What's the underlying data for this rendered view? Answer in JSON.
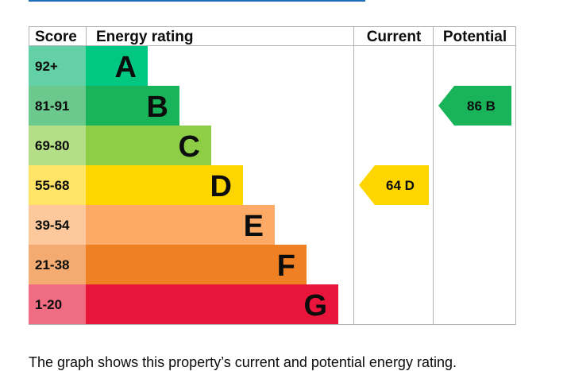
{
  "chart_data": {
    "type": "table",
    "headers": {
      "score": "Score",
      "rating": "Energy rating",
      "current": "Current",
      "potential": "Potential"
    },
    "bands": [
      {
        "letter": "A",
        "range": "92+",
        "color": "#00c781",
        "score_color": "#64d0a8"
      },
      {
        "letter": "B",
        "range": "81-91",
        "color": "#19b459",
        "score_color": "#6cc98e"
      },
      {
        "letter": "C",
        "range": "69-80",
        "color": "#8dce46",
        "score_color": "#b4df86"
      },
      {
        "letter": "D",
        "range": "55-68",
        "color": "#ffd500",
        "score_color": "#ffe467"
      },
      {
        "letter": "E",
        "range": "39-54",
        "color": "#fcaa65",
        "score_color": "#fdc89b"
      },
      {
        "letter": "F",
        "range": "21-38",
        "color": "#ef8023",
        "score_color": "#f4ab71"
      },
      {
        "letter": "G",
        "range": "1-20",
        "color": "#e9153b",
        "score_color": "#f06c83"
      }
    ],
    "current": {
      "score": 64,
      "letter": "D",
      "label": "64 D",
      "color": "#ffd500"
    },
    "potential": {
      "score": 86,
      "letter": "B",
      "label": "86 B",
      "color": "#19b459"
    }
  },
  "caption": "The graph shows this property’s current and potential energy rating."
}
